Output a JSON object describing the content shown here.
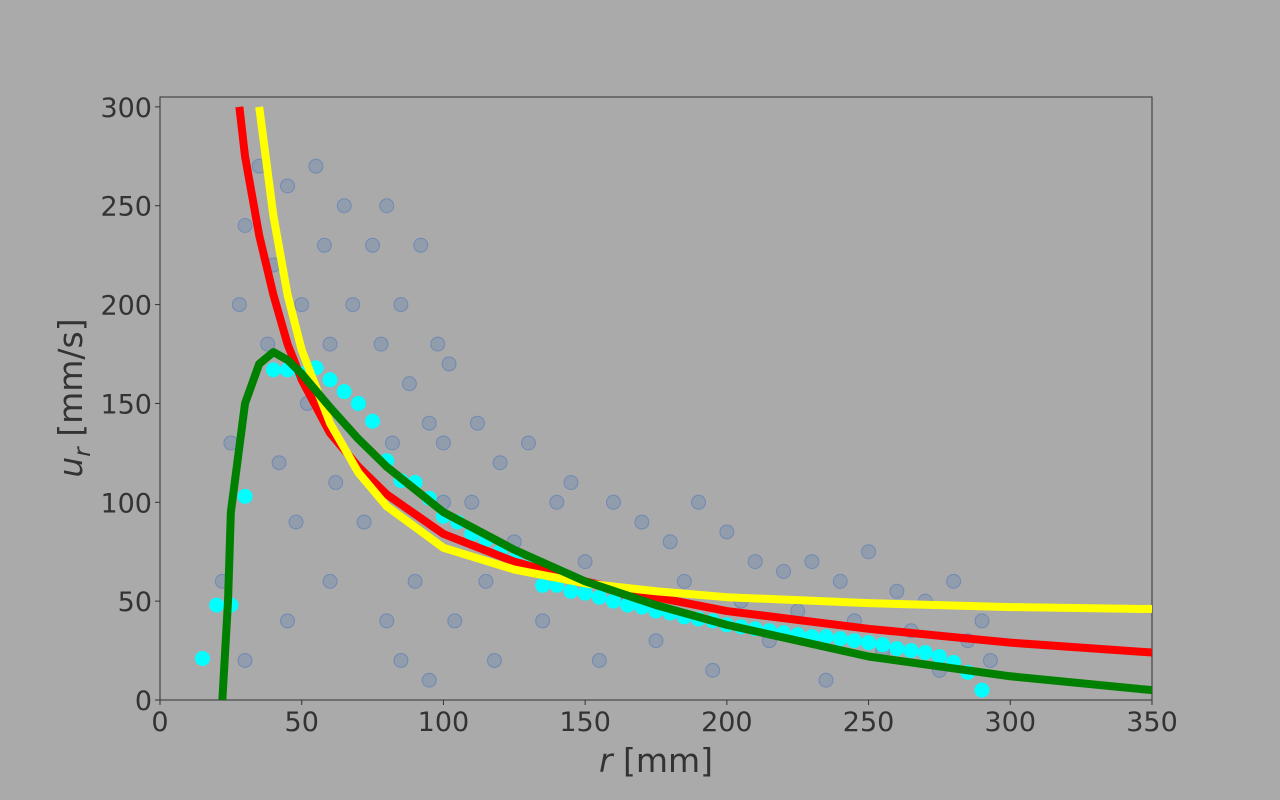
{
  "chart_data": {
    "type": "scatter",
    "xlabel": {
      "var": "r",
      "unit": "[mm]"
    },
    "ylabel": {
      "var": "u",
      "sub": "r",
      "unit": "[mm/s]"
    },
    "xlim": [
      0,
      350
    ],
    "ylim": [
      0,
      305
    ],
    "xticks": [
      0,
      50,
      100,
      150,
      200,
      250,
      300,
      350
    ],
    "yticks": [
      0,
      50,
      100,
      150,
      200,
      250,
      300
    ],
    "series": [
      {
        "kind": "scatter",
        "marker": "hollow",
        "color": "#1f5fbf",
        "x": [
          22,
          25,
          28,
          30,
          35,
          38,
          40,
          42,
          45,
          48,
          50,
          52,
          55,
          58,
          60,
          62,
          65,
          68,
          70,
          72,
          75,
          78,
          80,
          82,
          85,
          88,
          90,
          92,
          95,
          98,
          100,
          102,
          104,
          85,
          95,
          60,
          45,
          30,
          80,
          100,
          110,
          112,
          115,
          118,
          120,
          125,
          130,
          135,
          140,
          145,
          150,
          155,
          160,
          165,
          170,
          175,
          180,
          185,
          190,
          195,
          200,
          205,
          210,
          215,
          220,
          225,
          230,
          235,
          240,
          245,
          250,
          255,
          260,
          265,
          270,
          275,
          280,
          285,
          290,
          293
        ],
        "values": [
          60,
          130,
          200,
          240,
          270,
          180,
          220,
          120,
          260,
          90,
          200,
          150,
          270,
          230,
          180,
          110,
          250,
          200,
          150,
          90,
          230,
          180,
          250,
          130,
          200,
          160,
          60,
          230,
          140,
          180,
          100,
          170,
          40,
          20,
          10,
          60,
          40,
          20,
          40,
          130,
          100,
          140,
          60,
          20,
          120,
          80,
          130,
          40,
          100,
          110,
          70,
          20,
          100,
          50,
          90,
          30,
          80,
          60,
          100,
          15,
          85,
          50,
          70,
          30,
          65,
          45,
          70,
          10,
          60,
          40,
          75,
          25,
          55,
          35,
          50,
          15,
          60,
          30,
          40,
          20
        ]
      },
      {
        "kind": "scatter",
        "marker": "filled",
        "color": "#00ffff",
        "x": [
          15,
          20,
          25,
          30,
          40,
          45,
          50,
          55,
          60,
          65,
          70,
          75,
          80,
          85,
          90,
          95,
          100,
          105,
          110,
          115,
          120,
          125,
          130,
          135,
          140,
          145,
          150,
          155,
          160,
          165,
          170,
          175,
          180,
          185,
          190,
          195,
          200,
          205,
          210,
          215,
          220,
          225,
          230,
          235,
          240,
          245,
          250,
          255,
          260,
          265,
          270,
          275,
          280,
          285,
          290
        ],
        "values": [
          21,
          48,
          48,
          103,
          167,
          167,
          165,
          168,
          162,
          156,
          150,
          141,
          121,
          111,
          110,
          102,
          93,
          90,
          84,
          81,
          75,
          71,
          67,
          58,
          58,
          55,
          54,
          52,
          50,
          48,
          47,
          45,
          44,
          42,
          41,
          40,
          38,
          37,
          36,
          35,
          34,
          33,
          32,
          32,
          31,
          30,
          29,
          28,
          26,
          25,
          24,
          22,
          19,
          14,
          5
        ]
      },
      {
        "kind": "line",
        "color": "#ff0000",
        "x": [
          28,
          30,
          35,
          40,
          45,
          50,
          60,
          70,
          80,
          100,
          125,
          150,
          175,
          200,
          250,
          300,
          350
        ],
        "values": [
          300,
          275,
          235,
          205,
          180,
          162,
          135,
          118,
          104,
          84,
          70,
          60,
          52,
          45,
          36,
          29,
          24
        ]
      },
      {
        "kind": "line",
        "color": "#ffff00",
        "x": [
          35,
          40,
          45,
          50,
          60,
          70,
          80,
          100,
          125,
          150,
          175,
          200,
          250,
          300,
          350
        ],
        "values": [
          300,
          245,
          205,
          177,
          140,
          115,
          98,
          77,
          66,
          59,
          55,
          52,
          49,
          47,
          46
        ]
      },
      {
        "kind": "line",
        "color": "#008000",
        "x": [
          22,
          24,
          25,
          30,
          35,
          40,
          45,
          50,
          60,
          70,
          80,
          100,
          125,
          150,
          175,
          200,
          250,
          300,
          350
        ],
        "values": [
          0,
          50,
          95,
          150,
          170,
          176,
          172,
          165,
          148,
          132,
          118,
          95,
          76,
          60,
          48,
          38,
          22,
          12,
          5
        ]
      }
    ]
  }
}
